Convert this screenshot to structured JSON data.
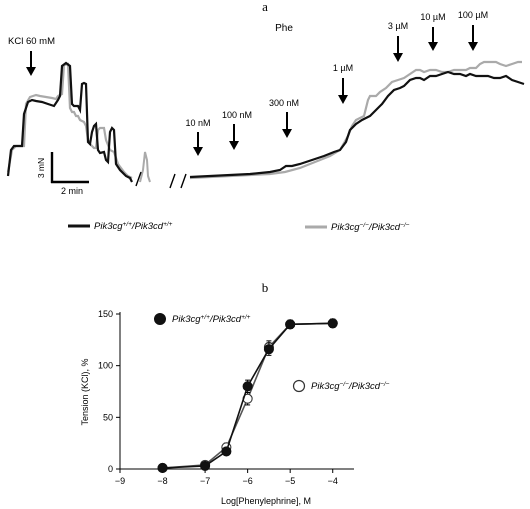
{
  "panel_a": {
    "label": "a",
    "phe_label": "Phe",
    "kcl_label": "KCl 60 mM",
    "scale_y_label": "3 mN",
    "scale_x_label": "2 min",
    "dose_labels": [
      "10 nM",
      "100 nM",
      "300 nM",
      "1 µM",
      "3 µM",
      "10 µM",
      "100 µM"
    ],
    "legend": [
      {
        "gene1": "Pik3cg",
        "sup1": "+/+",
        "gene2": "Pik3cd",
        "sup2": "+/+",
        "color": "#111111"
      },
      {
        "gene1": "Pik3cg",
        "sup1": "−/−",
        "gene2": "Pik3cd",
        "sup2": "−/−",
        "color": "#aaaaaa"
      }
    ]
  },
  "panel_b": {
    "label": "b",
    "legend": [
      {
        "gene1": "Pik3cg",
        "sup1": "+/+",
        "gene2": "Pik3cd",
        "sup2": "+/+",
        "marker": "filled-circle"
      },
      {
        "gene1": "Pik3cg",
        "sup1": "−/−",
        "gene2": "Pik3cd",
        "sup2": "−/−",
        "marker": "open-circle"
      }
    ]
  },
  "chart_data": {
    "type": "line",
    "xlabel": "Log[Phenylephrine], M",
    "ylabel": "Tension (KCl), %",
    "xlim": [
      -9,
      -3.5
    ],
    "ylim": [
      0,
      150
    ],
    "xticks": [
      -9,
      -8,
      -7,
      -6,
      -5,
      -4
    ],
    "yticks": [
      0,
      50,
      100,
      150
    ],
    "series": [
      {
        "name": "Pik3cg+/+/Pik3cd+/+",
        "marker": "filled-circle",
        "color": "#111111",
        "x": [
          -8,
          -7,
          -6.5,
          -6,
          -5.5,
          -5,
          -4
        ],
        "y": [
          1,
          3,
          17,
          80,
          116,
          140,
          141
        ],
        "err": [
          1,
          2,
          3,
          6,
          6,
          4,
          4
        ]
      },
      {
        "name": "Pik3cg-/-/Pik3cd-/-",
        "marker": "open-circle",
        "color": "#555555",
        "x": [
          -8,
          -7,
          -6.5,
          -6,
          -5.5,
          -5,
          -4
        ],
        "y": [
          1,
          4,
          21,
          68,
          118,
          140,
          141
        ],
        "err": [
          1,
          2,
          4,
          6,
          6,
          4,
          4
        ]
      }
    ]
  }
}
